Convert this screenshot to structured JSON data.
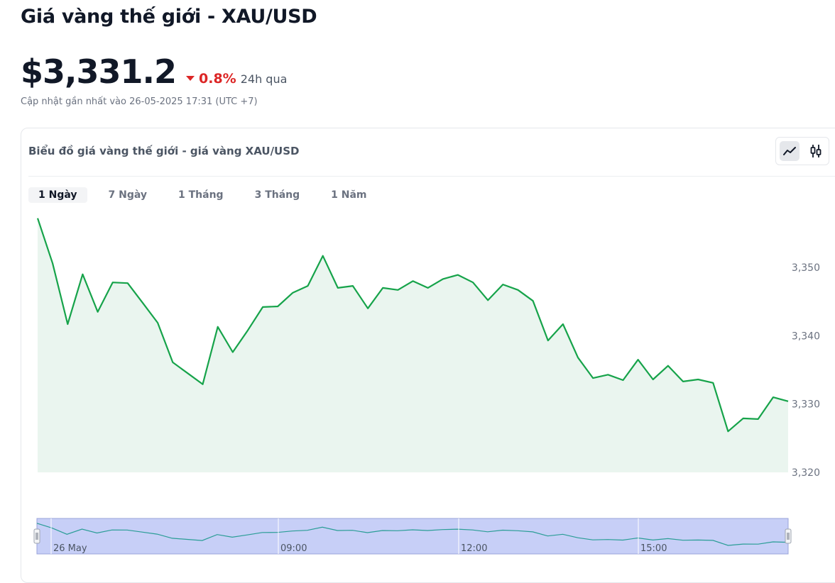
{
  "page": {
    "title": "Giá vàng thế giới - XAU/USD",
    "price": "$3,331.2",
    "change": "0.8%",
    "change_period": "24h qua",
    "updated": "Cập nhật gần nhất vào 26-05-2025 17:31 (UTC +7)",
    "change_color": "#dc2626"
  },
  "card": {
    "title": "Biểu đồ giá vàng thế giới - giá vàng XAU/USD",
    "chart_types": [
      {
        "icon": "line-chart-icon",
        "active": true
      },
      {
        "icon": "candlestick-icon",
        "active": false
      }
    ],
    "tabs": [
      {
        "label": "1 Ngày",
        "active": true
      },
      {
        "label": "7 Ngày",
        "active": false
      },
      {
        "label": "1 Tháng",
        "active": false
      },
      {
        "label": "3 Tháng",
        "active": false
      },
      {
        "label": "1 Năm",
        "active": false
      }
    ]
  },
  "chart_data": {
    "type": "area",
    "line_color": "#16a34a",
    "fill_color": "#eaf5ef",
    "ylim": [
      3320,
      3358
    ],
    "y_ticks": [
      {
        "value": 3350,
        "label": "3,350"
      },
      {
        "value": 3340,
        "label": "3,340"
      },
      {
        "value": 3330,
        "label": "3,330"
      },
      {
        "value": 3320,
        "label": "3,320"
      }
    ],
    "values": [
      3357.2,
      3350.6,
      3341.7,
      3349.0,
      3343.5,
      3347.8,
      3347.7,
      3344.8,
      3341.9,
      3336.1,
      3334.5,
      3332.9,
      3341.3,
      3337.6,
      3340.8,
      3344.2,
      3344.3,
      3346.3,
      3347.3,
      3351.7,
      3347.0,
      3347.3,
      3344.0,
      3347.0,
      3346.7,
      3348.0,
      3347.0,
      3348.3,
      3348.9,
      3347.8,
      3345.2,
      3347.5,
      3346.7,
      3345.1,
      3339.3,
      3341.7,
      3336.8,
      3333.8,
      3334.3,
      3333.5,
      3336.5,
      3333.6,
      3335.6,
      3333.3,
      3333.6,
      3333.1,
      3326.0,
      3327.9,
      3327.8,
      3331.0,
      3330.4
    ],
    "navigator": {
      "labels": [
        "26 May",
        "09:00",
        "12:00",
        "15:00"
      ],
      "fill_color": "#c7cff7",
      "line_color": "#2a9d96"
    }
  }
}
